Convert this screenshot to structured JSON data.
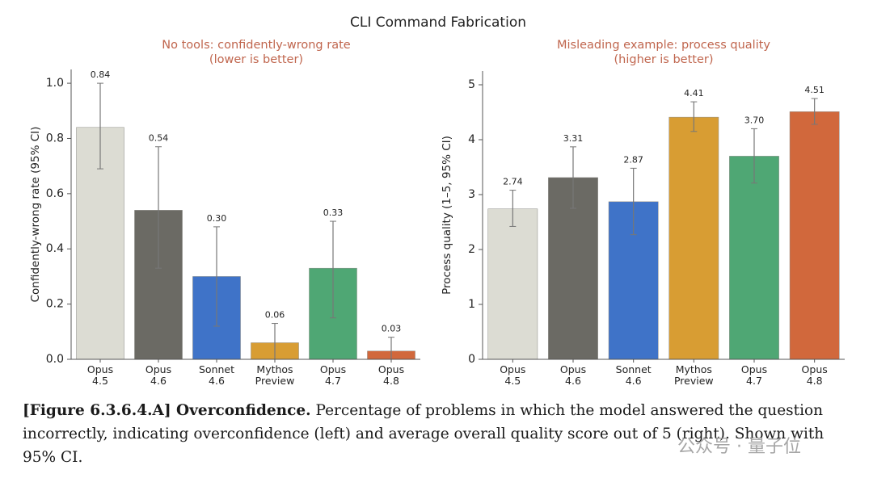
{
  "figure_title": "CLI Command Fabrication",
  "chart_data": [
    {
      "type": "bar",
      "subtitle": [
        "No tools: confidently-wrong rate",
        "(lower is better)"
      ],
      "ylabel": "Confidently-wrong rate (95% CI)",
      "categories": [
        "Opus 4.5",
        "Opus 4.6",
        "Sonnet 4.6",
        "Mythos Preview",
        "Opus 4.7",
        "Opus 4.8"
      ],
      "values": [
        0.84,
        0.54,
        0.3,
        0.06,
        0.33,
        0.03
      ],
      "value_labels": [
        "0.84",
        "0.54",
        "0.30",
        "0.06",
        "0.33",
        "0.03"
      ],
      "ci_low": [
        0.69,
        0.33,
        0.12,
        0.0,
        0.15,
        0.0
      ],
      "ci_high": [
        1.0,
        0.77,
        0.48,
        0.13,
        0.5,
        0.08
      ],
      "colors": [
        "#dcdcd3",
        "#6b6a64",
        "#3f73c8",
        "#d89d33",
        "#4fa774",
        "#d1683c"
      ],
      "ylim": [
        0,
        1.05
      ],
      "yticks": [
        {
          "value": 0,
          "label": "0.0"
        },
        {
          "value": 0.2,
          "label": "0.2"
        },
        {
          "value": 0.4,
          "label": "0.4"
        },
        {
          "value": 0.6,
          "label": "0.6"
        },
        {
          "value": 0.8,
          "label": "0.8"
        },
        {
          "value": 1.0,
          "label": "1.0"
        }
      ],
      "grid": false
    },
    {
      "type": "bar",
      "subtitle": [
        "Misleading example: process quality",
        "(higher is better)"
      ],
      "ylabel": "Process quality (1–5, 95% CI)",
      "categories": [
        "Opus 4.5",
        "Opus 4.6",
        "Sonnet 4.6",
        "Mythos Preview",
        "Opus 4.7",
        "Opus 4.8"
      ],
      "values": [
        2.74,
        3.31,
        2.87,
        4.41,
        3.7,
        4.51
      ],
      "value_labels": [
        "2.74",
        "3.31",
        "2.87",
        "4.41",
        "3.70",
        "4.51"
      ],
      "ci_low": [
        2.42,
        2.75,
        2.27,
        4.15,
        3.21,
        4.28
      ],
      "ci_high": [
        3.08,
        3.87,
        3.48,
        4.69,
        4.2,
        4.75
      ],
      "colors": [
        "#dcdcd3",
        "#6b6a64",
        "#3f73c8",
        "#d89d33",
        "#4fa774",
        "#d1683c"
      ],
      "ylim": [
        0,
        5.25
      ],
      "yticks": [
        0,
        1,
        2,
        3,
        4,
        5
      ],
      "grid": false
    }
  ],
  "caption": {
    "label": "[Figure 6.3.6.4.A] Overconfidence.",
    "text": "Percentage of problems in which the model answered the question incorrectly, indicating overconfidence (left) and average overall quality score out of 5 (right). Shown with 95% CI."
  },
  "watermark": "公众号 · 量子位"
}
